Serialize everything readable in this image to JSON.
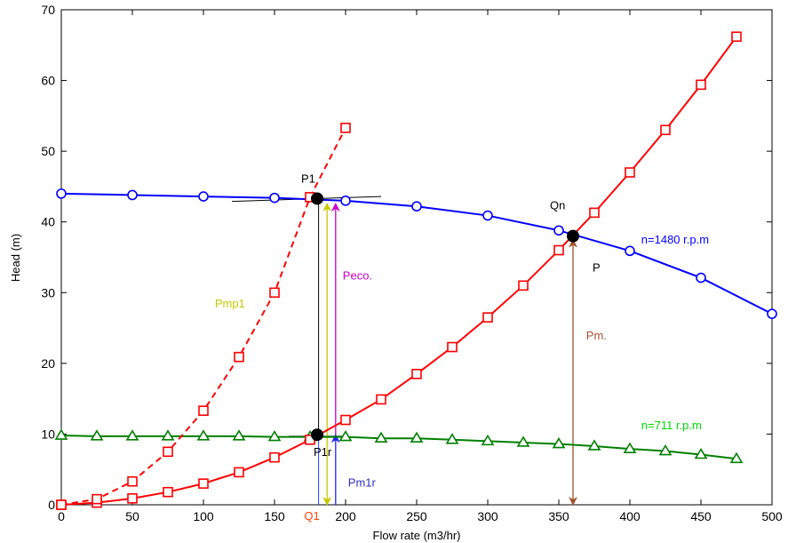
{
  "chart_data": {
    "type": "line",
    "xlabel": "Flow rate (m3/hr)",
    "ylabel": "Head (m)",
    "xlim": [
      0,
      500
    ],
    "ylim": [
      0,
      70
    ],
    "xticks": [
      0,
      50,
      100,
      150,
      200,
      250,
      300,
      350,
      400,
      450,
      500
    ],
    "yticks": [
      0,
      10,
      20,
      30,
      40,
      50,
      60,
      70
    ],
    "grid": false,
    "series": [
      {
        "name": "n=1480 r.p.m",
        "color": "#0000ff",
        "marker": "circle",
        "line": "solid",
        "x": [
          0,
          50,
          100,
          150,
          200,
          250,
          300,
          350,
          400,
          450,
          500
        ],
        "y": [
          44.0,
          43.8,
          43.6,
          43.4,
          43.0,
          42.2,
          40.9,
          38.8,
          35.9,
          32.1,
          27.0
        ]
      },
      {
        "name": "n=711 r.p.m",
        "color": "#008000",
        "marker": "triangle",
        "line": "solid",
        "x": [
          0,
          25,
          50,
          75,
          100,
          125,
          150,
          175,
          200,
          225,
          250,
          275,
          300,
          325,
          350,
          375,
          400,
          425,
          450,
          475
        ],
        "y": [
          9.8,
          9.7,
          9.7,
          9.7,
          9.7,
          9.7,
          9.6,
          9.6,
          9.6,
          9.4,
          9.4,
          9.2,
          9.0,
          8.8,
          8.6,
          8.3,
          7.9,
          7.6,
          7.1,
          6.5
        ]
      },
      {
        "color": "#ff0000",
        "marker": "square",
        "line": "solid",
        "x": [
          0,
          25,
          50,
          75,
          100,
          125,
          150,
          175,
          200,
          225,
          250,
          275,
          300,
          325,
          350,
          375,
          400,
          425,
          450,
          475
        ],
        "y": [
          0,
          0.3,
          0.9,
          1.8,
          3.0,
          4.6,
          6.7,
          9.2,
          12.0,
          14.9,
          18.5,
          22.3,
          26.5,
          31.0,
          36.0,
          41.3,
          47.0,
          53.0,
          59.4,
          66.2
        ]
      },
      {
        "color": "#ff0000",
        "marker": "square",
        "line": "dashed",
        "x": [
          0,
          25,
          50,
          75,
          100,
          125,
          150,
          175,
          200
        ],
        "y": [
          0,
          0.8,
          3.3,
          7.5,
          13.3,
          20.9,
          30.0,
          43.5,
          53.3
        ]
      }
    ],
    "points": [
      {
        "label": "P1",
        "x": 180,
        "y": 43.3,
        "label_dx": -18,
        "label_dy": -18
      },
      {
        "label": "P1r",
        "x": 180,
        "y": 9.9,
        "label_dx": -4,
        "label_dy": 24
      },
      {
        "label": "P",
        "x": 360,
        "y": 38.0,
        "label_dx": 22,
        "label_dy": 40
      },
      {
        "label": "Qn",
        "x": 360,
        "y": 38.0,
        "label_dx": -26,
        "label_dy": -30
      }
    ],
    "annotations": [
      {
        "text": "Pmp1",
        "color": "#c8c800",
        "x": 138,
        "y": 28.5,
        "anchor": "end",
        "dx": -14
      },
      {
        "text": "Peco.",
        "color": "#cc00cc",
        "x": 193,
        "y": 32.5,
        "anchor": "start",
        "dx": 8
      },
      {
        "text": "Pm.",
        "color": "#a0522d",
        "x": 363,
        "y": 24.0,
        "anchor": "start",
        "dx": 10
      },
      {
        "text": "Pm1r",
        "color": "#3030c0",
        "x": 193,
        "y": 3.2,
        "anchor": "start",
        "dx": 14
      },
      {
        "text": "n=1480 r.p.m",
        "color": "#0000ff",
        "x": 408,
        "y": 37.6,
        "anchor": "start",
        "dx": 0
      },
      {
        "text": "n=711 r.p.m",
        "color": "#00dd00",
        "x": 408,
        "y": 11.3,
        "anchor": "start",
        "dx": 0
      },
      {
        "text": "Q1",
        "color": "#ff4000",
        "x": 180,
        "y": -1.5,
        "anchor": "middle",
        "dx": -6
      }
    ],
    "double_arrows": [
      {
        "color": "#c8c800",
        "x": 187,
        "y0": 0,
        "y1": 42.6,
        "note": "Pmp1"
      },
      {
        "color": "#a0522d",
        "x": 360,
        "y0": 0,
        "y1": 37.5,
        "note": "Pm."
      }
    ],
    "single_arrows": [
      {
        "color": "#cc00cc",
        "x": 193,
        "from": 9.9,
        "to": 42.6
      },
      {
        "color": "#2020ff",
        "x": 193,
        "from": 0,
        "to": 9.9
      }
    ],
    "vertical_lines": [
      {
        "color": "#000000",
        "x": 181,
        "y0": 9.9,
        "y1": 43.3
      },
      {
        "color": "#2040ff",
        "x": 181,
        "y0": 0,
        "y1": 9.9
      }
    ],
    "tangents": [
      {
        "color": "#000000",
        "x0": 120,
        "y0": 42.9,
        "x1": 225,
        "y1": 43.6
      },
      {
        "color": "#000000",
        "x0": 160,
        "y0": 9.7,
        "x1": 200,
        "y1": 9.7
      }
    ]
  }
}
